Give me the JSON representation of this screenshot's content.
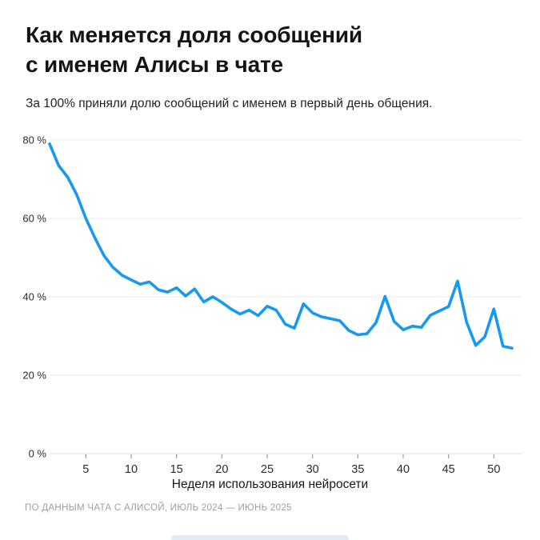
{
  "page": {
    "title_line1": "Как меняется доля сообщений",
    "title_line2": "с именем Алисы в чате",
    "subtitle": "За 100% приняли долю сообщений с именем в первый день общения.",
    "footer": "ПО ДАННЫМ ЧАТА С АЛИСОЙ, ИЮЛЬ 2024 — ИЮНЬ 2025"
  },
  "colors": {
    "line": "#1899F0",
    "grid": "#e9e9e9",
    "axis_line": "#e0e0e0",
    "tick_mark": "#9e9e9e",
    "tick_text": "#2b2b2b",
    "title_text": "#141414",
    "footer_text": "#9aa0a6",
    "watermark": "#e2ebf3"
  },
  "chart_data": {
    "type": "line",
    "title": "Как меняется доля сообщений с именем Алисы в чате",
    "subtitle": "За 100% приняли долю сообщений с именем в первый день общения.",
    "xlabel": "Неделя использования нейросети",
    "ylabel": "",
    "unit": "%",
    "grid": true,
    "legend": false,
    "xlim": [
      1,
      52
    ],
    "ylim": [
      0,
      80
    ],
    "x_ticks": [
      5,
      10,
      15,
      20,
      25,
      30,
      35,
      40,
      45,
      50
    ],
    "y_ticks": [
      {
        "value": 80,
        "label": "80 %"
      },
      {
        "value": 60,
        "label": "60 %"
      },
      {
        "value": 40,
        "label": "40 %"
      },
      {
        "value": 20,
        "label": "20 %"
      },
      {
        "value": 0,
        "label": "0 %"
      }
    ],
    "x_weeks_start": 1,
    "values": [
      79,
      73.5,
      70.5,
      66,
      60,
      55,
      50.5,
      47.5,
      45.5,
      44.3,
      43.2,
      43.8,
      41.8,
      41.2,
      42.3,
      40.2,
      42,
      38.7,
      40,
      38.6,
      36.9,
      35.6,
      36.6,
      35.2,
      37.6,
      36.6,
      33,
      32,
      38.2,
      35.9,
      34.9,
      34.4,
      33.9,
      31.4,
      30.3,
      30.6,
      33.4,
      40.1,
      33.7,
      31.6,
      32.5,
      32.2,
      35.3,
      36.4,
      37.5,
      44,
      33.5,
      27.6,
      29.8,
      36.9,
      27.4,
      26.9
    ]
  }
}
